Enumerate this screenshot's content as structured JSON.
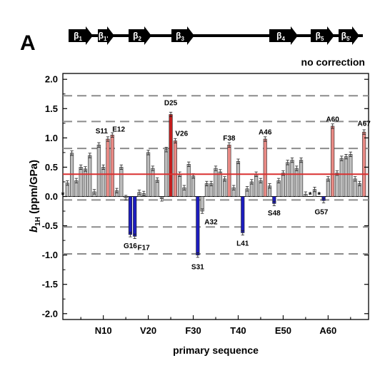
{
  "panel_label": "A",
  "topology": [
    {
      "label": "β",
      "sub": "1"
    },
    {
      "label": "β",
      "sub": "1'"
    },
    {
      "label": "β",
      "sub": "2"
    },
    {
      "label": "β",
      "sub": "3"
    },
    {
      "label": "β",
      "sub": "4"
    },
    {
      "label": "β",
      "sub": "5"
    },
    {
      "label": "β",
      "sub": "5'"
    }
  ],
  "correction_note": "no correction",
  "colors": {
    "gray": "#bdbdbd",
    "light_red": "#e98a85",
    "dark_red": "#c41e1e",
    "blue": "#1c1cc0",
    "mean_line": "#d93030",
    "dashed": "#8c8c8c"
  },
  "chart_data": {
    "type": "bar",
    "xlabel": "primary sequence",
    "ylabel_main": "b",
    "ylabel_sub": "1H",
    "ylabel_unit": " (ppm/GPa)",
    "ylim": [
      -2.1,
      2.1
    ],
    "xlim": [
      1,
      69
    ],
    "yticks": [
      "2.0",
      "1.5",
      "1.0",
      "0.5",
      "0.0",
      "-0.5",
      "-1.0",
      "-1.5",
      "-2.0"
    ],
    "ytick_values": [
      2.0,
      1.5,
      1.0,
      0.5,
      0.0,
      -0.5,
      -1.0,
      -1.5,
      -2.0
    ],
    "xticks": [
      {
        "label": "N10",
        "x": 10
      },
      {
        "label": "V20",
        "x": 20
      },
      {
        "label": "F30",
        "x": 30
      },
      {
        "label": "T40",
        "x": 40
      },
      {
        "label": "E50",
        "x": 50
      },
      {
        "label": "A60",
        "x": 60
      }
    ],
    "mean_line": 0.38,
    "dashed_lines": [
      1.72,
      1.28,
      0.82,
      -0.06,
      -0.52,
      -0.98
    ],
    "missing_marker": "*",
    "missing_residues": [
      1,
      56,
      58
    ],
    "bars": [
      {
        "x": 2,
        "v": 0.23,
        "c": "gray"
      },
      {
        "x": 3,
        "v": 0.74,
        "c": "gray"
      },
      {
        "x": 4,
        "v": 0.27,
        "c": "gray"
      },
      {
        "x": 5,
        "v": 0.5,
        "c": "gray"
      },
      {
        "x": 6,
        "v": 0.47,
        "c": "gray"
      },
      {
        "x": 7,
        "v": 0.7,
        "c": "gray"
      },
      {
        "x": 8,
        "v": 0.08,
        "c": "gray"
      },
      {
        "x": 9,
        "v": 0.88,
        "c": "gray"
      },
      {
        "x": 10,
        "v": 0.5,
        "c": "gray"
      },
      {
        "x": 11,
        "v": 0.98,
        "c": "light_red"
      },
      {
        "x": 12,
        "v": 1.05,
        "c": "light_red"
      },
      {
        "x": 13,
        "v": 0.1,
        "c": "gray"
      },
      {
        "x": 14,
        "v": 0.5,
        "c": "gray"
      },
      {
        "x": 15,
        "v": -0.02,
        "c": "gray"
      },
      {
        "x": 16,
        "v": -0.65,
        "c": "blue"
      },
      {
        "x": 17,
        "v": -0.68,
        "c": "blue"
      },
      {
        "x": 18,
        "v": 0.07,
        "c": "gray"
      },
      {
        "x": 19,
        "v": 0.05,
        "c": "gray"
      },
      {
        "x": 20,
        "v": 0.75,
        "c": "gray"
      },
      {
        "x": 21,
        "v": 0.48,
        "c": "gray"
      },
      {
        "x": 22,
        "v": 0.28,
        "c": "gray"
      },
      {
        "x": 23,
        "v": -0.04,
        "c": "gray"
      },
      {
        "x": 24,
        "v": 0.8,
        "c": "gray"
      },
      {
        "x": 25,
        "v": 1.4,
        "c": "dark_red"
      },
      {
        "x": 26,
        "v": 0.95,
        "c": "light_red"
      },
      {
        "x": 27,
        "v": 0.38,
        "c": "gray"
      },
      {
        "x": 28,
        "v": 0.15,
        "c": "gray"
      },
      {
        "x": 29,
        "v": 0.55,
        "c": "gray"
      },
      {
        "x": 30,
        "v": 0.35,
        "c": "gray"
      },
      {
        "x": 31,
        "v": -1.0,
        "c": "blue"
      },
      {
        "x": 32,
        "v": -0.25,
        "c": "gray"
      },
      {
        "x": 33,
        "v": 0.22,
        "c": "gray"
      },
      {
        "x": 34,
        "v": 0.22,
        "c": "gray"
      },
      {
        "x": 35,
        "v": 0.48,
        "c": "gray"
      },
      {
        "x": 36,
        "v": 0.42,
        "c": "gray"
      },
      {
        "x": 37,
        "v": 0.3,
        "c": "gray"
      },
      {
        "x": 38,
        "v": 0.88,
        "c": "light_red"
      },
      {
        "x": 39,
        "v": 0.15,
        "c": "gray"
      },
      {
        "x": 40,
        "v": 0.6,
        "c": "gray"
      },
      {
        "x": 41,
        "v": -0.62,
        "c": "blue"
      },
      {
        "x": 42,
        "v": 0.13,
        "c": "gray"
      },
      {
        "x": 43,
        "v": 0.25,
        "c": "gray"
      },
      {
        "x": 44,
        "v": 0.38,
        "c": "gray"
      },
      {
        "x": 45,
        "v": 0.27,
        "c": "gray"
      },
      {
        "x": 46,
        "v": 0.98,
        "c": "light_red"
      },
      {
        "x": 47,
        "v": 0.18,
        "c": "gray"
      },
      {
        "x": 48,
        "v": -0.12,
        "c": "blue"
      },
      {
        "x": 49,
        "v": 0.27,
        "c": "gray"
      },
      {
        "x": 50,
        "v": 0.4,
        "c": "gray"
      },
      {
        "x": 51,
        "v": 0.58,
        "c": "gray"
      },
      {
        "x": 52,
        "v": 0.62,
        "c": "gray"
      },
      {
        "x": 53,
        "v": 0.48,
        "c": "gray"
      },
      {
        "x": 54,
        "v": 0.62,
        "c": "gray"
      },
      {
        "x": 55,
        "v": 0.04,
        "c": "gray"
      },
      {
        "x": 57,
        "v": 0.12,
        "c": "gray"
      },
      {
        "x": 59,
        "v": -0.07,
        "c": "blue"
      },
      {
        "x": 60,
        "v": 0.3,
        "c": "gray"
      },
      {
        "x": 61,
        "v": 1.2,
        "c": "light_red"
      },
      {
        "x": 62,
        "v": 0.4,
        "c": "gray"
      },
      {
        "x": 63,
        "v": 0.65,
        "c": "gray"
      },
      {
        "x": 64,
        "v": 0.68,
        "c": "gray"
      },
      {
        "x": 65,
        "v": 0.72,
        "c": "gray"
      },
      {
        "x": 66,
        "v": 0.3,
        "c": "gray"
      },
      {
        "x": 67,
        "v": 0.22,
        "c": "gray"
      },
      {
        "x": 68,
        "v": 1.1,
        "c": "light_red"
      }
    ],
    "annotations": [
      {
        "text": "S11",
        "x": 11,
        "v": 1.12,
        "anchor": "end"
      },
      {
        "text": "E12",
        "x": 12,
        "v": 1.15,
        "anchor": "start"
      },
      {
        "text": "G16",
        "x": 16,
        "v": -0.84,
        "anchor": "middle"
      },
      {
        "text": "F17",
        "x": 17.6,
        "v": -0.87,
        "anchor": "start"
      },
      {
        "text": "D25",
        "x": 25,
        "v": 1.6,
        "anchor": "middle"
      },
      {
        "text": "V26",
        "x": 26,
        "v": 1.08,
        "anchor": "start"
      },
      {
        "text": "S31",
        "x": 31,
        "v": -1.2,
        "anchor": "middle"
      },
      {
        "text": "A32",
        "x": 32.5,
        "v": -0.43,
        "anchor": "start"
      },
      {
        "text": "F38",
        "x": 38,
        "v": 1.0,
        "anchor": "middle"
      },
      {
        "text": "L41",
        "x": 41,
        "v": -0.8,
        "anchor": "middle"
      },
      {
        "text": "A46",
        "x": 46,
        "v": 1.1,
        "anchor": "middle"
      },
      {
        "text": "S48",
        "x": 48,
        "v": -0.28,
        "anchor": "middle"
      },
      {
        "text": "G57",
        "x": 58.5,
        "v": -0.26,
        "anchor": "middle"
      },
      {
        "text": "A60",
        "x": 61,
        "v": 1.32,
        "anchor": "middle"
      },
      {
        "text": "A67",
        "x": 68,
        "v": 1.25,
        "anchor": "middle"
      }
    ]
  }
}
